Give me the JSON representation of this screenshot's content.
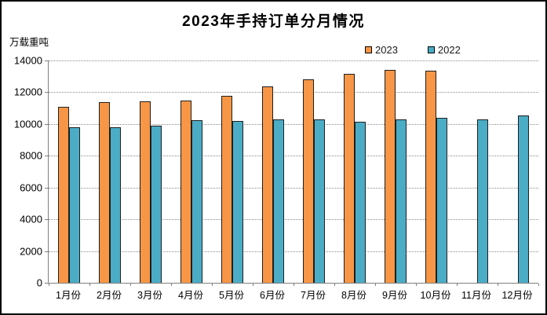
{
  "chart": {
    "title": "2023年手持订单分月情况",
    "unit_label": "万载重吨"
  },
  "chart_data": {
    "type": "bar",
    "title": "2023年手持订单分月情况",
    "ylabel": "万载重吨",
    "xlabel": "",
    "categories": [
      "1月份",
      "2月份",
      "3月份",
      "4月份",
      "5月份",
      "6月份",
      "7月份",
      "8月份",
      "9月份",
      "10月份",
      "11月份",
      "12月份"
    ],
    "series": [
      {
        "name": "2023",
        "color": "#F79646",
        "values": [
          11094,
          11362,
          11452,
          11492,
          11799,
          12377,
          12790,
          13155,
          13393,
          13382,
          null,
          null
        ]
      },
      {
        "name": "2022",
        "color": "#4BACC6",
        "values": [
          9798,
          9790,
          9892,
          10247,
          10198,
          10274,
          10274,
          10151,
          10269,
          10381,
          10304,
          10557
        ]
      }
    ],
    "ylim": [
      0,
      14000
    ],
    "yticks": [
      0,
      2000,
      4000,
      6000,
      8000,
      10000,
      12000,
      14000
    ],
    "grid": "horizontal-dotted",
    "legend_position": "top-right",
    "colors": {
      "border": "#1f1f1f",
      "axis": "#808080",
      "gridline": "#8c8c8c"
    }
  }
}
